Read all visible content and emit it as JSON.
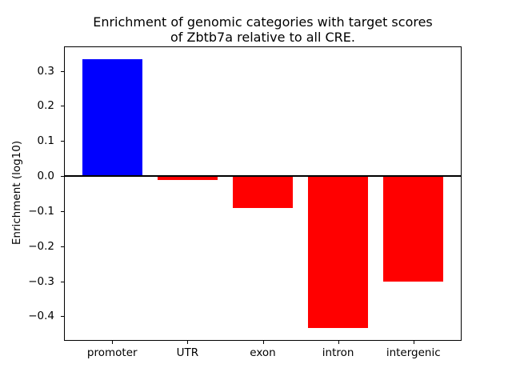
{
  "figure": {
    "title": "Enrichment of genomic categories with target scores\nof Zbtb7a relative to all CRE.",
    "ylabel": "Enrichment (log10)"
  },
  "chart_data": {
    "type": "bar",
    "title": "Enrichment of genomic categories with target scores of Zbtb7a relative to all CRE.",
    "xlabel": "",
    "ylabel": "Enrichment (log10)",
    "categories": [
      "promoter",
      "UTR",
      "exon",
      "intron",
      "intergenic"
    ],
    "values": [
      0.333,
      -0.012,
      -0.091,
      -0.433,
      -0.3
    ],
    "bar_colors": [
      "#0000ff",
      "#ff0000",
      "#ff0000",
      "#ff0000",
      "#ff0000"
    ],
    "ylim": [
      -0.47,
      0.37
    ],
    "yticks": [
      0.3,
      0.2,
      0.1,
      0.0,
      -0.1,
      -0.2,
      -0.3,
      -0.4
    ],
    "ytick_labels": [
      "0.3",
      "0.2",
      "0.1",
      "0.0",
      "−0.1",
      "−0.2",
      "−0.3",
      "−0.4"
    ],
    "grid": false,
    "legend": false,
    "zero_line": true,
    "axis_color": "#000000",
    "text_color": "#000000",
    "positive_color": "#0000ff",
    "negative_color": "#ff0000",
    "background_color": "#ffffff"
  }
}
